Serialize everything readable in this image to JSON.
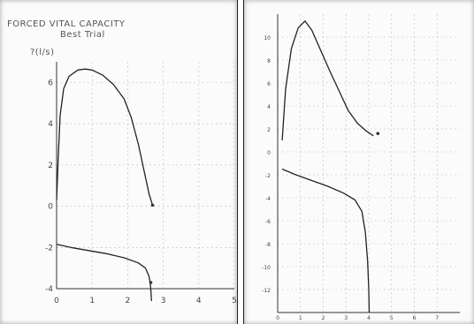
{
  "chart_data": [
    {
      "type": "line",
      "title": "FORCED VITAL CAPACITY",
      "subtitle": "Best Trial",
      "ylabel": "?(l/s)",
      "xlabel": "",
      "xlim": [
        0,
        5
      ],
      "ylim": [
        -4,
        7
      ],
      "x_ticks": [
        "0",
        "1",
        "2",
        "3",
        "4",
        "5"
      ],
      "y_ticks": [
        "6",
        "4",
        "2",
        "0",
        "-2",
        "-4"
      ],
      "grid": true,
      "series": [
        {
          "name": "",
          "points": [
            [
              0,
              0.3
            ],
            [
              0.05,
              2.5
            ],
            [
              0.1,
              4.4
            ],
            [
              0.2,
              5.7
            ],
            [
              0.35,
              6.3
            ],
            [
              0.6,
              6.6
            ],
            [
              0.8,
              6.65
            ],
            [
              1.0,
              6.6
            ],
            [
              1.3,
              6.35
            ],
            [
              1.6,
              5.9
            ],
            [
              1.9,
              5.2
            ],
            [
              2.1,
              4.3
            ],
            [
              2.3,
              3.0
            ],
            [
              2.45,
              1.8
            ],
            [
              2.6,
              0.6
            ],
            [
              2.7,
              0.05
            ]
          ]
        },
        {
          "name": "",
          "points": [
            [
              0,
              -1.85
            ],
            [
              0.4,
              -2.0
            ],
            [
              0.9,
              -2.15
            ],
            [
              1.4,
              -2.3
            ],
            [
              1.9,
              -2.5
            ],
            [
              2.3,
              -2.75
            ],
            [
              2.5,
              -3.0
            ],
            [
              2.6,
              -3.4
            ],
            [
              2.63,
              -3.7
            ],
            [
              2.65,
              -4.0
            ],
            [
              2.67,
              -4.6
            ]
          ]
        }
      ],
      "markers": [
        [
          2.7,
          0.05
        ],
        [
          2.65,
          -3.7
        ]
      ]
    },
    {
      "type": "line",
      "title": "",
      "subtitle": "",
      "ylabel": "",
      "xlabel": "",
      "xlim": [
        0,
        8
      ],
      "ylim": [
        -14,
        12
      ],
      "x_ticks": [
        "0",
        "1",
        "2",
        "3",
        "4",
        "5",
        "6",
        "7"
      ],
      "y_ticks": [
        "10",
        "8",
        "6",
        "4",
        "2",
        "0",
        "-2",
        "-4",
        "-6",
        "-8",
        "-10",
        "-12"
      ],
      "grid": true,
      "series": [
        {
          "name": "",
          "points": [
            [
              0.2,
              1.0
            ],
            [
              0.35,
              5.5
            ],
            [
              0.6,
              9.0
            ],
            [
              0.9,
              10.8
            ],
            [
              1.2,
              11.4
            ],
            [
              1.5,
              10.6
            ],
            [
              1.9,
              8.8
            ],
            [
              2.3,
              7.0
            ],
            [
              2.7,
              5.3
            ],
            [
              3.1,
              3.6
            ],
            [
              3.5,
              2.5
            ],
            [
              3.9,
              1.8
            ],
            [
              4.2,
              1.4
            ]
          ]
        },
        {
          "name": "",
          "points": [
            [
              0.2,
              -1.5
            ],
            [
              0.8,
              -2.0
            ],
            [
              1.5,
              -2.5
            ],
            [
              2.2,
              -3.0
            ],
            [
              2.9,
              -3.6
            ],
            [
              3.4,
              -4.2
            ],
            [
              3.7,
              -5.2
            ],
            [
              3.85,
              -7.0
            ],
            [
              3.95,
              -9.5
            ],
            [
              4.0,
              -12.0
            ],
            [
              4.02,
              -14.0
            ]
          ]
        }
      ],
      "markers": [
        [
          4.4,
          1.6
        ]
      ]
    }
  ]
}
